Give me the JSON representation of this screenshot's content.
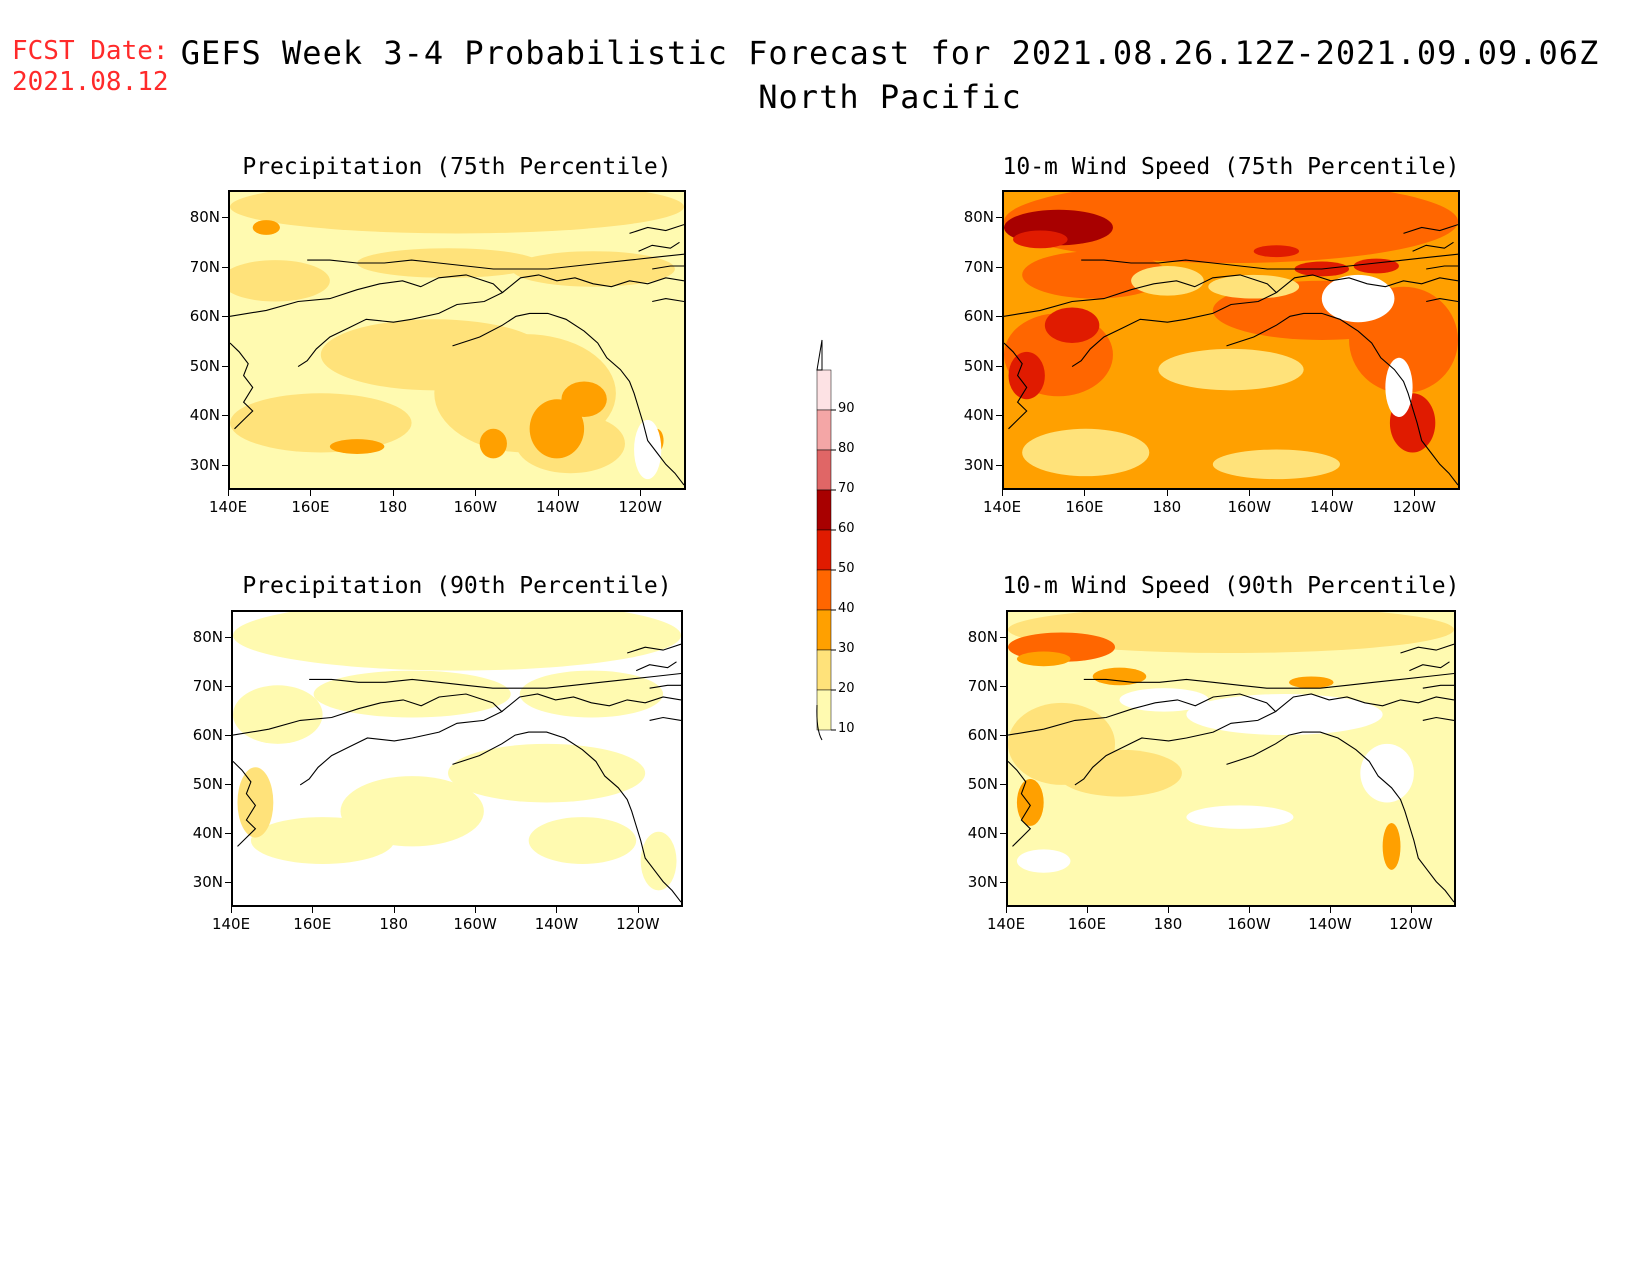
{
  "header": {
    "fcst_label": "FCST Date:",
    "fcst_date": "2021.08.12",
    "title": "GEFS Week 3-4 Probabilistic Forecast for 2021.08.26.12Z-2021.09.09.06Z",
    "region": "North Pacific"
  },
  "axes": {
    "lat_ticks": [
      "80N",
      "70N",
      "60N",
      "50N",
      "40N",
      "30N"
    ],
    "lon_ticks": [
      "140E",
      "160E",
      "180",
      "160W",
      "140W",
      "120W"
    ]
  },
  "panels": [
    {
      "id": "precip75",
      "title": "Precipitation (75th Percentile)",
      "field": "precipitation",
      "percentile": 75
    },
    {
      "id": "wind75",
      "title": "10-m Wind Speed (75th Percentile)",
      "field": "wind_speed",
      "percentile": 75
    },
    {
      "id": "precip90",
      "title": "Precipitation (90th Percentile)",
      "field": "precipitation",
      "percentile": 90
    },
    {
      "id": "wind90",
      "title": "10-m Wind Speed (90th Percentile)",
      "field": "wind_speed",
      "percentile": 90
    }
  ],
  "colorbar": {
    "labels": [
      "90",
      "80",
      "70",
      "60",
      "50",
      "40",
      "30",
      "20",
      "10"
    ],
    "colors": [
      "#fde2e4",
      "#f4a6a6",
      "#e06666",
      "#a80000",
      "#e01b00",
      "#ff6600",
      "#ffa000",
      "#ffe27a",
      "#fffab0"
    ]
  },
  "palette": {
    "white": "#ffffff",
    "pale_yellow": "#fffab0",
    "yellow": "#ffe27a",
    "light_orange": "#ffa000",
    "orange": "#ff6600",
    "red": "#e01b00",
    "dark_red": "#a80000",
    "coastline": "#000000",
    "fcst_red": "#ff2a2a"
  }
}
